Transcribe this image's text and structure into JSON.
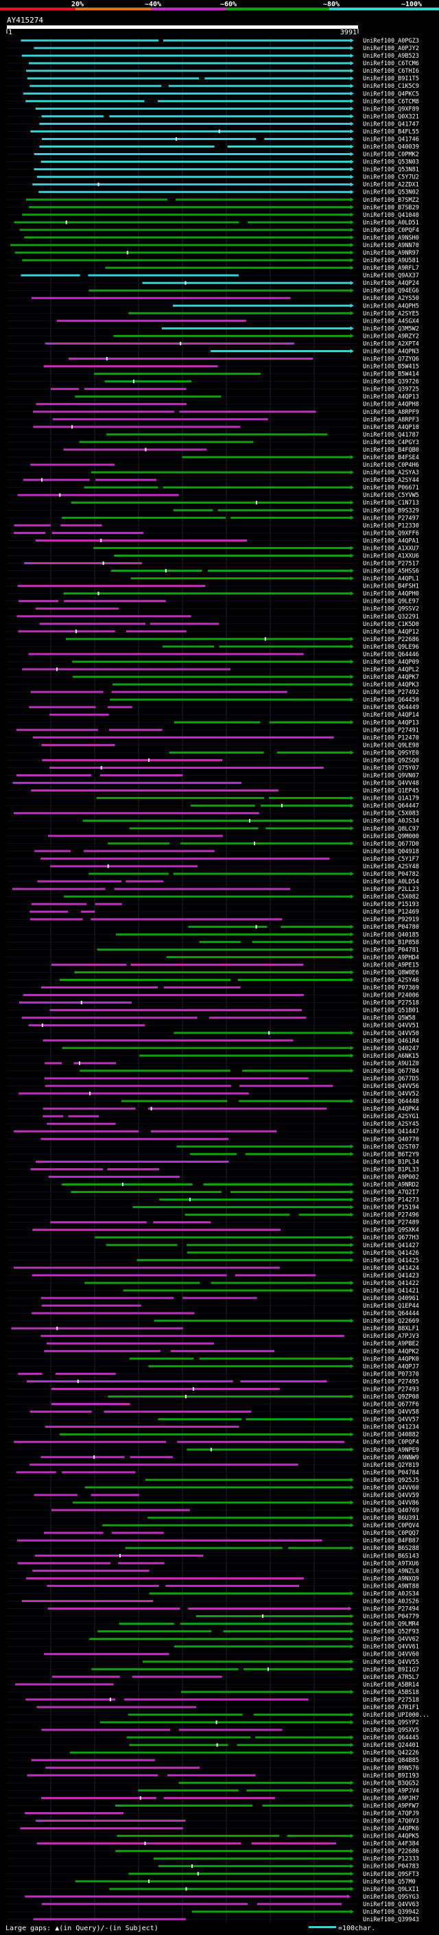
{
  "chart_data": {
    "type": "alignment-overview",
    "query_name": "AY415274",
    "axis_start": "1",
    "axis_end": "3991",
    "legend_top": [
      "20%",
      "~40%",
      "~60%",
      "~80%",
      "~100%"
    ],
    "legend_bottom": {
      "label": "Large gaps: ▲(in Query)/-(in Subject)",
      "scale": "=100char."
    },
    "identity_colors": {
      "cyan": "#3ccfd4",
      "green": "#11a011",
      "magenta": "#bd32bd",
      "orange": "#d97419",
      "red": "#e01818"
    },
    "hit_labels": [
      "UniRef100_A0PGZ3",
      "UniRef100_A0PJY2",
      "UniRef100_A9B523",
      "UniRef100_C6TCM6",
      "UniRef100_C6THI6",
      "UniRef100_B9I1T5",
      "UniRef100_C1K5C9",
      "UniRef100_Q4PKC5",
      "UniRef100_C6TCM8",
      "UniRef100_Q9XF89",
      "UniRef100_Q0X321",
      "UniRef100_Q41747",
      "UniRef100_B4FL55",
      "UniRef100_Q41746",
      "UniRef100_Q40039",
      "UniRef100_C0PMK2",
      "UniRef100_Q53N03",
      "UniRef100_Q53N81",
      "UniRef100_C5Y7U2",
      "UniRef100_A2ZDX1",
      "UniRef100_Q53N02",
      "UniRef100_B7SMZ2",
      "UniRef100_B7SB29",
      "UniRef100_Q41040",
      "UniRef100_A0LD51",
      "UniRef100_C0PQF4",
      "UniRef100_A9NSH0",
      "UniRef100_A9NN70",
      "UniRef100_A9NR97",
      "UniRef100_A9U581",
      "UniRef100_A9RFL7",
      "UniRef100_Q9AX37",
      "UniRef100_A4QP24",
      "UniRef100_Q94EG6",
      "UniRef100_A2YS50",
      "UniRef100_A4QPH5",
      "UniRef100_A2SYE5",
      "UniRef100_A4SGX4",
      "UniRef100_Q3M5W2",
      "UniRef100_A9RZY2",
      "UniRef100_A2XPT4",
      "UniRef100_A4QPN3",
      "UniRef100_Q7ZYQ6",
      "UniRef100_B5W415",
      "UniRef100_B5W414",
      "UniRef100_Q39726",
      "UniRef100_Q39725",
      "UniRef100_A4QP13",
      "UniRef100_A4QPH8",
      "UniRef100_A8RPF9",
      "UniRef100_A8RPF3",
      "UniRef100_A4QP10",
      "UniRef100_Q41787",
      "UniRef100_C4PGY3",
      "UniRef100_B4FQB0",
      "UniRef100_B4FSE4",
      "UniRef100_C0P4H6",
      "UniRef100_A2SYA3",
      "UniRef100_A2SY44",
      "UniRef100_P06671",
      "UniRef100_C5YVW5",
      "UniRef100_C1N713",
      "UniRef100_B9S329",
      "UniRef100_P27497",
      "UniRef100_P12330",
      "UniRef100_Q9XFF6",
      "UniRef100_A4QPA1",
      "UniRef100_A1XXU7",
      "UniRef100_A1XXU6",
      "UniRef100_P27517",
      "UniRef100_A5HSS6",
      "UniRef100_A4QPL1",
      "UniRef100_B4FSH1",
      "UniRef100_A4QPH0",
      "UniRef100_Q9LE97",
      "UniRef100_Q9SSV2",
      "UniRef100_Q32291",
      "UniRef100_C1K5D0",
      "UniRef100_A4QP12",
      "UniRef100_P22686",
      "UniRef100_Q9LE96",
      "UniRef100_Q64446",
      "UniRef100_A4QP09",
      "UniRef100_A4QPL2",
      "UniRef100_A4QPK7",
      "UniRef100_A4QPK3",
      "UniRef100_P27492",
      "UniRef100_Q64450",
      "UniRef100_Q64449",
      "UniRef100_A4QP14",
      "UniRef100_A4QP13",
      "UniRef100_P27491",
      "UniRef100_P12470",
      "UniRef100_Q9LE98",
      "UniRef100_Q9SYE0",
      "UniRef100_Q9ZSQ0",
      "UniRef100_Q75Y07",
      "UniRef100_Q9VN07",
      "UniRef100_Q4VV48",
      "UniRef100_Q1EP45",
      "UniRef100_Q1A179",
      "UniRef100_Q64447",
      "UniRef100_C5X083",
      "UniRef100_A0JS34",
      "UniRef100_Q8LC97",
      "UniRef100_Q9M000",
      "UniRef100_Q677D0",
      "UniRef100_Q04918",
      "UniRef100_C5Y1F7",
      "UniRef100_A2SY48",
      "UniRef100_P04782",
      "UniRef100_A0LD54",
      "UniRef100_P2LL23",
      "UniRef100_C5X082",
      "UniRef100_P15193",
      "UniRef100_P12469",
      "UniRef100_P92919",
      "UniRef100_P04780",
      "UniRef100_Q40185",
      "UniRef100_B1P858",
      "UniRef100_P04781",
      "UniRef100_A9PHD4",
      "UniRef100_A9PE15",
      "UniRef100_Q8W0E6",
      "UniRef100_A2SY46",
      "UniRef100_P07369",
      "UniRef100_P24006",
      "UniRef100_P27518",
      "UniRef100_Q51B01",
      "UniRef100_Q5W58",
      "UniRef100_Q4VV51",
      "UniRef100_Q4VV50",
      "UniRef100_Q461R4",
      "UniRef100_Q40247",
      "UniRef100_A6NK15",
      "UniRef100_A9U1Z0",
      "UniRef100_Q677B4",
      "UniRef100_Q677D5",
      "UniRef100_Q4VV56",
      "UniRef100_Q4VV52",
      "UniRef100_Q64448",
      "UniRef100_A4QPK4",
      "UniRef100_A2SYG1",
      "UniRef100_A2SY45",
      "UniRef100_Q41447",
      "UniRef100_Q40770",
      "UniRef100_Q2ST07",
      "UniRef100_B6T2Y9",
      "UniRef100_B1PL34",
      "UniRef100_B1PL33",
      "UniRef100_A9P002",
      "UniRef100_A9NRD2",
      "UniRef100_A7Q2I7",
      "UniRef100_P14273",
      "UniRef100_P15194",
      "UniRef100_P27496",
      "UniRef100_P27489",
      "UniRef100_Q9SXK4",
      "UniRef100_Q677H3",
      "UniRef100_Q41427",
      "UniRef100_Q41426",
      "UniRef100_Q41425",
      "UniRef100_Q41424",
      "UniRef100_Q41423",
      "UniRef100_Q41422",
      "UniRef100_Q41421",
      "UniRef100_Q40961",
      "UniRef100_Q1EP44",
      "UniRef100_Q64444",
      "UniRef100_Q22669",
      "UniRef100_B8XLF1",
      "UniRef100_A7PJV3",
      "UniRef100_A9PBE2",
      "UniRef100_A4QPK2",
      "UniRef100_A4QPK0",
      "UniRef100_A4QPJ7",
      "UniRef100_P07370",
      "UniRef100_P27495",
      "UniRef100_P27493",
      "UniRef100_Q9ZP08",
      "UniRef100_Q677F6",
      "UniRef100_Q4VV58",
      "UniRef100_Q4VV57",
      "UniRef100_Q41234",
      "UniRef100_Q40882",
      "UniRef100_C0PQF4",
      "UniRef100_A9NPE9",
      "UniRef100_A9NNW9",
      "UniRef100_Q2Y819",
      "UniRef100_P04784",
      "UniRef100_Q925J5",
      "UniRef100_Q4VV60",
      "UniRef100_Q4VV59",
      "UniRef100_Q4VV86",
      "UniRef100_Q40769",
      "UniRef100_B6U391",
      "UniRef100_C0PQV4",
      "UniRef100_C0PQQ7",
      "UniRef100_B4FB87",
      "UniRef100_B6S288",
      "UniRef100_B6S143",
      "UniRef100_A9TXU6",
      "UniRef100_A9NZL0",
      "UniRef100_A9NXQ9",
      "UniRef100_A9NT88",
      "UniRef100_A0JS34",
      "UniRef100_A0JS26",
      "UniRef100_P27494",
      "UniRef100_P04779",
      "UniRef100_Q9LMR4",
      "UniRef100_Q52F93",
      "UniRef100_Q4VV62",
      "UniRef100_Q4VV61",
      "UniRef100_Q4VV60",
      "UniRef100_Q4VV55",
      "UniRef100_B9I1G7",
      "UniRef100_A7R5L7",
      "UniRef100_A5BR14",
      "UniRef100_A5BS18",
      "UniRef100_P27518",
      "UniRef100_A7R1F1",
      "UniRef100_UPI000...",
      "UniRef100_Q9SYP2",
      "UniRef100_Q9SXV5",
      "UniRef100_Q64445",
      "UniRef100_Q24401",
      "UniRef100_Q42226",
      "UniRef100_Q84B85",
      "UniRef100_B9N576",
      "UniRef100_B9I193",
      "UniRef100_B3QG52",
      "UniRef100_A9PJV4",
      "UniRef100_A9PJH7",
      "UniRef100_A9PFW7",
      "UniRef100_A7QPJ9",
      "UniRef100_A7Q0V3",
      "UniRef100_A4QPK6",
      "UniRef100_A4QPK5",
      "UniRef100_A4F384",
      "UniRef100_P22686",
      "UniRef100_P12333",
      "UniRef100_P04783",
      "UniRef100_Q9SFT3",
      "UniRef100_Q57M0",
      "UniRef100_Q9LXI1",
      "UniRef100_Q9SYG3",
      "UniRef100_Q4VV63",
      "UniRef100_Q39942",
      "UniRef100_Q39943"
    ]
  }
}
